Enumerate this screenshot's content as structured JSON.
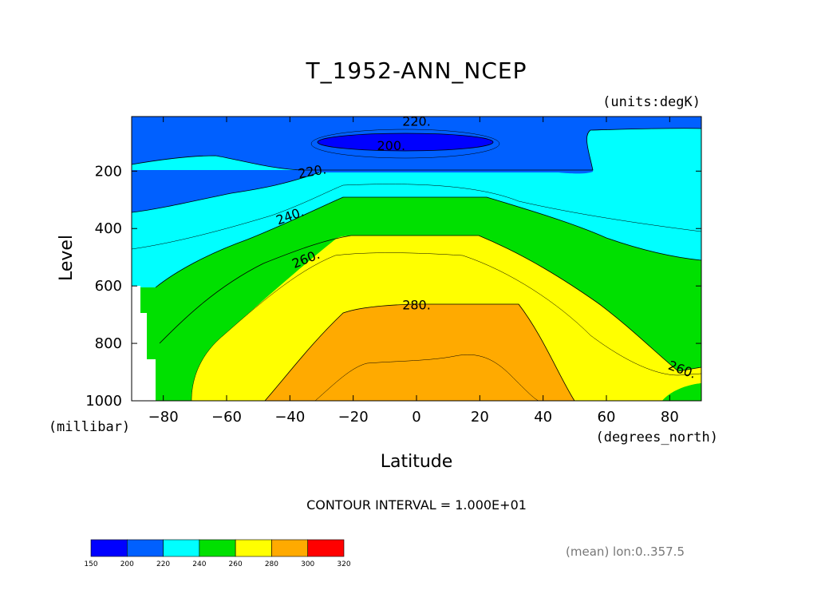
{
  "chart_data": {
    "type": "heatmap",
    "title": "T_1952-ANN_NCEP",
    "units_label": "(units:degK)",
    "xlabel": "Latitude",
    "xunits": "(degrees_north)",
    "ylabel": "Level",
    "yunits": "(millibar)",
    "xlim": [
      -90,
      90
    ],
    "ylim": [
      1000,
      10
    ],
    "x_ticks": [
      -80,
      -60,
      -40,
      -20,
      0,
      20,
      40,
      60,
      80
    ],
    "y_ticks": [
      200,
      400,
      600,
      800,
      1000
    ],
    "contour_labels": [
      {
        "text": "220.",
        "lat": 0,
        "lev": 25
      },
      {
        "text": "200.",
        "lat": -8,
        "lev": 110
      },
      {
        "text": "220.",
        "lat": -33,
        "lev": 200
      },
      {
        "text": "240.",
        "lat": -40,
        "lev": 355
      },
      {
        "text": "260.",
        "lat": -35,
        "lev": 505
      },
      {
        "text": "280.",
        "lat": 0,
        "lev": 665
      },
      {
        "text": "260.",
        "lat": 84,
        "lev": 890
      }
    ],
    "contour_interval_label": "CONTOUR INTERVAL = 1.000E+01",
    "annotation": "(mean) lon:0..357.5",
    "colorbar": {
      "levels": [
        150,
        200,
        220,
        240,
        260,
        280,
        300,
        320
      ],
      "colors": [
        "#0000ff",
        "#0060ff",
        "#00ffff",
        "#00e000",
        "#ffff00",
        "#ffaa00",
        "#ff0000"
      ]
    }
  }
}
